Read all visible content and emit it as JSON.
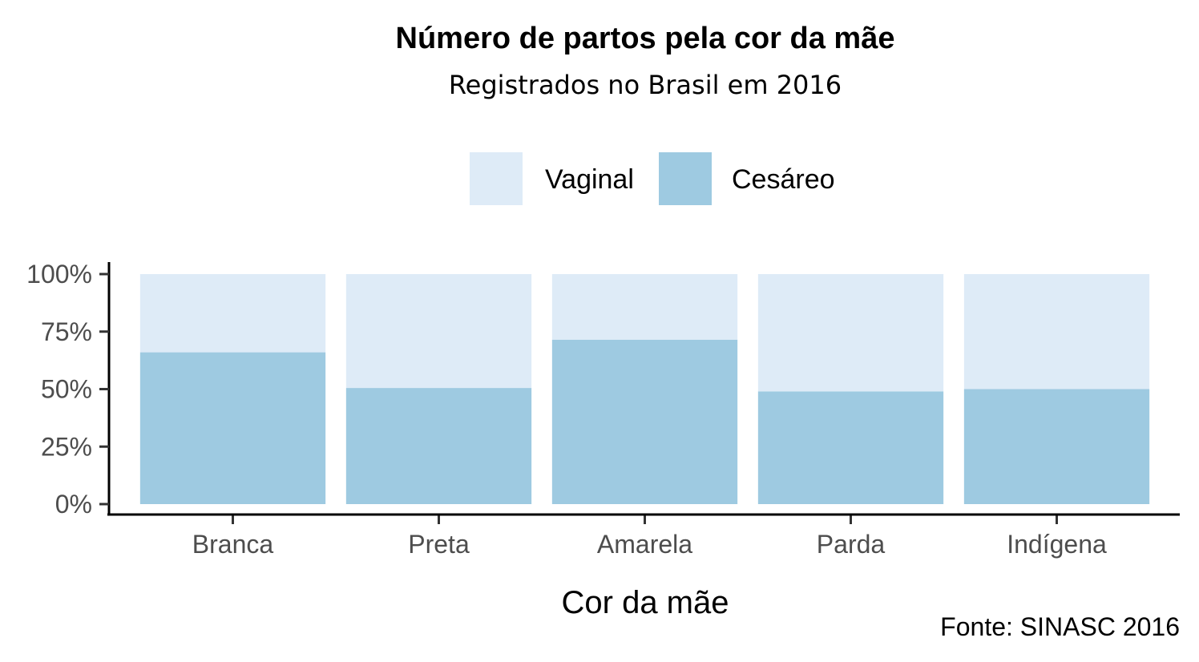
{
  "chart_data": {
    "type": "bar",
    "stacked": true,
    "normalized": true,
    "title": "Número de partos pela cor da mãe",
    "subtitle": "Registrados no Brasil em 2016",
    "xlabel": "Cor da mãe",
    "ylabel": "",
    "caption": "Fonte: SINASC 2016",
    "categories": [
      "Branca",
      "Preta",
      "Amarela",
      "Parda",
      "Indígena"
    ],
    "series": [
      {
        "name": "Vaginal",
        "color": "#deebf7",
        "values": [
          0.34,
          0.495,
          0.285,
          0.51,
          0.5
        ]
      },
      {
        "name": "Cesáreo",
        "color": "#9ecae1",
        "values": [
          0.66,
          0.505,
          0.715,
          0.49,
          0.5
        ]
      }
    ],
    "ylim": [
      0,
      1
    ],
    "yticks": [
      "0%",
      "25%",
      "50%",
      "75%",
      "100%"
    ],
    "ytick_values": [
      0,
      0.25,
      0.5,
      0.75,
      1.0
    ],
    "legend_position": "top",
    "grid": false
  }
}
